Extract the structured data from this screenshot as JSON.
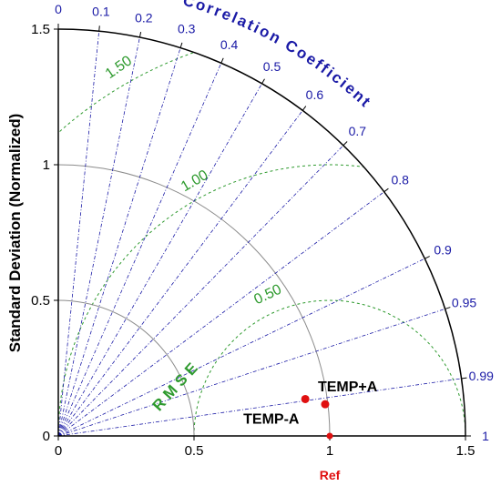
{
  "chart_data": {
    "type": "taylor-diagram",
    "ylabel": "Standard Deviation (Normalized)",
    "correlation_label": "Correlation Coefficient",
    "rmse_label": "RMSE",
    "ref_label": "Ref",
    "std_range": [
      0,
      1.5
    ],
    "std_ticks": [
      "0",
      "0.5",
      "1",
      "1.5"
    ],
    "std_tick_values": [
      0,
      0.5,
      1,
      1.5
    ],
    "std_arcs": [
      0.5,
      1.0
    ],
    "correlation_ticks": [
      {
        "label": "0",
        "value": 0
      },
      {
        "label": "0.1",
        "value": 0.1
      },
      {
        "label": "0.2",
        "value": 0.2
      },
      {
        "label": "0.3",
        "value": 0.3
      },
      {
        "label": "0.4",
        "value": 0.4
      },
      {
        "label": "0.5",
        "value": 0.5
      },
      {
        "label": "0.6",
        "value": 0.6
      },
      {
        "label": "0.7",
        "value": 0.7
      },
      {
        "label": "0.8",
        "value": 0.8
      },
      {
        "label": "0.9",
        "value": 0.9
      },
      {
        "label": "0.95",
        "value": 0.95
      },
      {
        "label": "0.99",
        "value": 0.99
      },
      {
        "label": "1",
        "value": 1.0
      }
    ],
    "rmse_contours": [
      {
        "label": "0.50",
        "value": 0.5
      },
      {
        "label": "1.00",
        "value": 1.0
      },
      {
        "label": "1.50",
        "value": 1.5
      }
    ],
    "reference": {
      "std": 1.0,
      "correlation": 1.0
    },
    "points": [
      {
        "name": "TEMP-A",
        "std": 0.92,
        "correlation": 0.989
      },
      {
        "name": "TEMP+A",
        "std": 0.99,
        "correlation": 0.993
      }
    ],
    "colors": {
      "axis": "#000000",
      "correlation": "#1a1aa6",
      "rmse": "#2e9a2e",
      "std_arcs": "#8c8c8c",
      "points": "#e01010",
      "ref": "#e01010"
    }
  }
}
